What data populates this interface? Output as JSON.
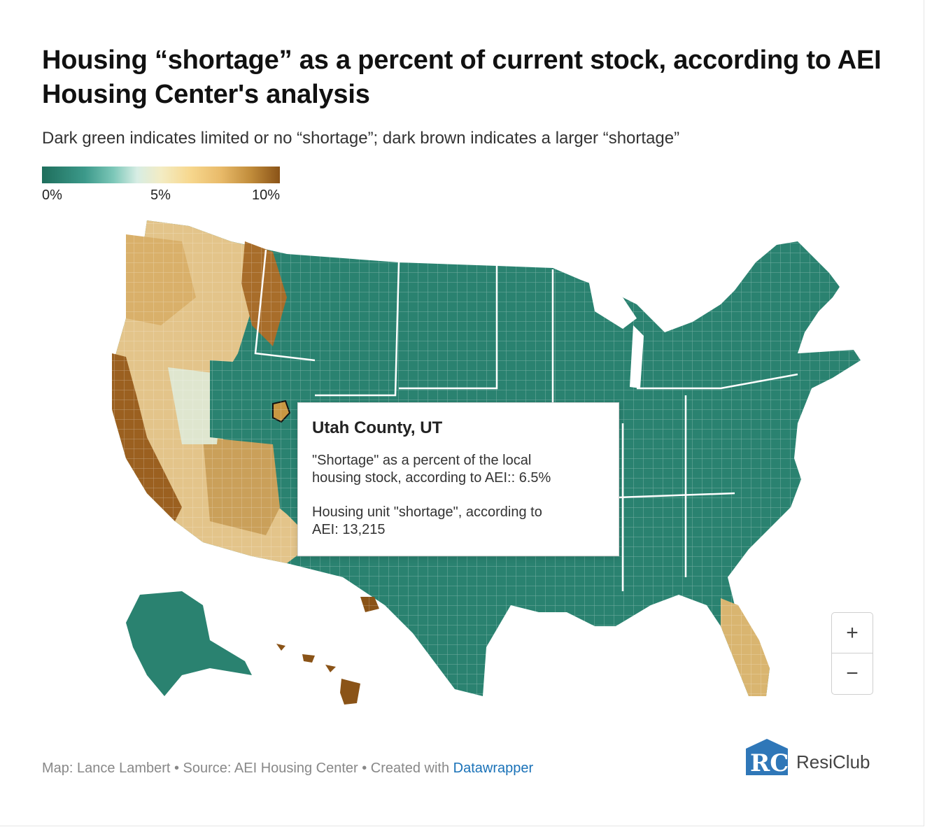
{
  "title": "Housing “shortage” as a percent of current stock, according to AEI Housing Center's analysis",
  "subtitle": "Dark green indicates limited or no “shortage”; dark brown indicates a larger “shortage”",
  "legend": {
    "min_label": "0%",
    "mid_label": "5%",
    "max_label": "10%",
    "colors": [
      "#1e6e5c",
      "#3c998a",
      "#7cc7b8",
      "#d7ede4",
      "#f3ecc4",
      "#f7d88f",
      "#e9bb6a",
      "#c08b3a",
      "#8a5317"
    ]
  },
  "tooltip": {
    "title": "Utah County, UT",
    "line1a": "\"Shortage\" as a percent of the local",
    "line1b": "housing stock, according to AEI:: 6.5%",
    "line2a": "Housing unit \"shortage\", according to",
    "line2b": "AEI: 13,215"
  },
  "zoom": {
    "plus": "+",
    "minus": "−"
  },
  "footer": {
    "prefix": "Map: Lance Lambert • Source: AEI Housing Center • Created with ",
    "link": "Datawrapper"
  },
  "logo": {
    "text": "ResiClub",
    "mark": "RC"
  }
}
